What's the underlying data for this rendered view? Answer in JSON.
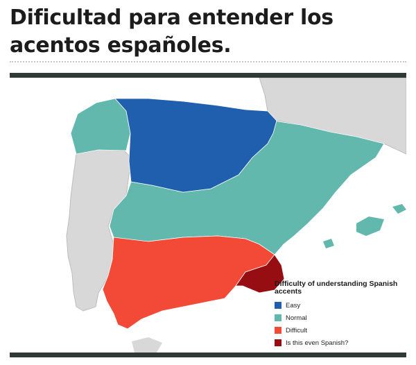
{
  "post": {
    "title": "Dificultad para entender los acentos españoles."
  },
  "map": {
    "legend_title": "Difficulty of understanding Spanish accents",
    "legend": [
      {
        "label": "Easy",
        "color": "#1f5fae",
        "icon": "legend-swatch-easy"
      },
      {
        "label": "Normal",
        "color": "#63b8ae",
        "icon": "legend-swatch-normal"
      },
      {
        "label": "Difficult",
        "color": "#f24a36",
        "icon": "legend-swatch-difficult"
      },
      {
        "label": "Is this even Spanish?",
        "color": "#960d12",
        "icon": "legend-swatch-spanish"
      }
    ],
    "colors": {
      "neighbors": "#d8d8d8",
      "sea": "#ffffff",
      "border": "#ffffff",
      "frame": "#2f3a37"
    }
  }
}
